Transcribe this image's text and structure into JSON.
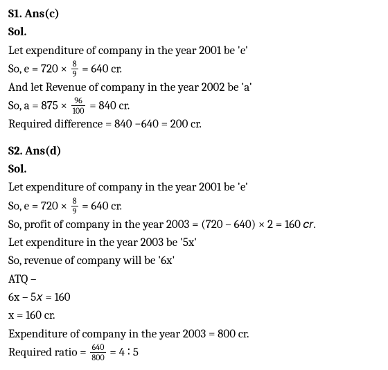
{
  "s1": {
    "header": "S1. Ans(c)",
    "sol": "Sol.",
    "l1a": "Let expenditure of company in the year 2001 be 'e'",
    "l2a": "So, e = 720 ×",
    "l2_num": "8",
    "l2_den": "9",
    "l2b": "= 640 cr.",
    "l3": "And let Revenue of company in the year 2002 be 'a'",
    "l4a": "So, a = 875 ×",
    "l4_num": "96",
    "l4_den": "100",
    "l4b": "= 840 cr.",
    "l5": "Required difference = 840 −640 = 200 cr."
  },
  "s2": {
    "header": "S2.  Ans(d)",
    "sol": "Sol.",
    "l1": "Let expenditure of company in the year 2001 be 'e'",
    "l2a": "So, e = 720 ×",
    "l2_num": "8",
    "l2_den": "9",
    "l2b": "= 640 cr.",
    "l3": "So, profit of company in the year 2003 = (720 –  640) × 2 = 160 𝑐𝑟.",
    "l4": "Let expenditure in the year 2003 be '5x'",
    "l5": "So, revenue of company will be '6x'",
    "l6": "ATQ –",
    "l7": "6x –  5𝑥 = 160",
    "l8": "x = 160 cr.",
    "l9": "Expenditure of company in the year 2003 = 800 cr.",
    "l10a": "Required ratio =",
    "l10_num": "640",
    "l10_den": "800",
    "l10b": "=  4 ∶ 5"
  }
}
